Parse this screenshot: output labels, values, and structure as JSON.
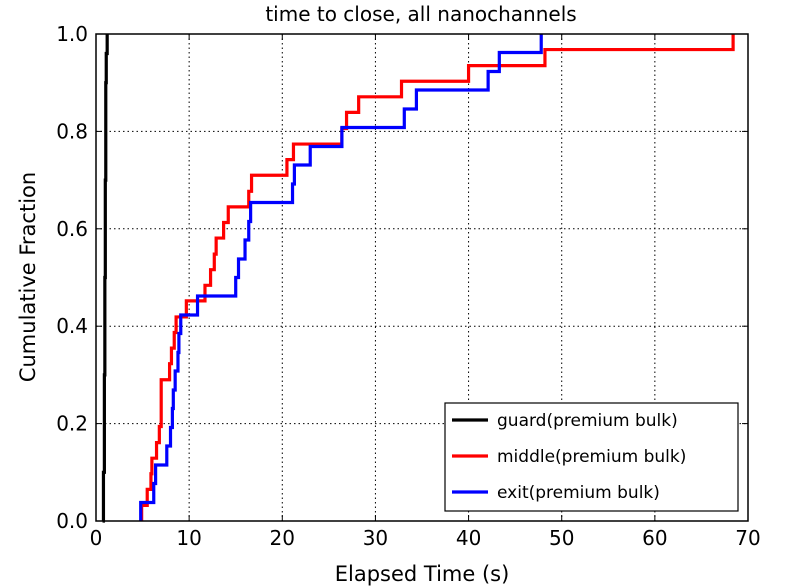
{
  "chart_data": {
    "type": "line",
    "step": true,
    "title": "time to close, all nanochannels",
    "xlabel": "Elapsed Time (s)",
    "ylabel": "Cumulative Fraction",
    "xlim": [
      0,
      70
    ],
    "ylim": [
      0,
      1.0
    ],
    "x_ticks": [
      0,
      10,
      20,
      30,
      40,
      50,
      60,
      70
    ],
    "x_tick_labels": [
      "0",
      "10",
      "20",
      "30",
      "40",
      "50",
      "60",
      "70"
    ],
    "y_ticks": [
      0.0,
      0.2,
      0.4,
      0.6,
      0.8,
      1.0
    ],
    "y_tick_labels": [
      "0.0",
      "0.2",
      "0.4",
      "0.6",
      "0.8",
      "1.0"
    ],
    "grid": true,
    "legend_position": "lower-right",
    "series": [
      {
        "name": "guard(premium bulk)",
        "color": "#000000",
        "points": [
          [
            0.7,
            0.0
          ],
          [
            0.8,
            0.1
          ],
          [
            0.9,
            0.3
          ],
          [
            0.95,
            0.5
          ],
          [
            1.0,
            0.7
          ],
          [
            1.05,
            0.9
          ],
          [
            1.1,
            0.96
          ],
          [
            1.2,
            1.0
          ]
        ]
      },
      {
        "name": "middle(premium bulk)",
        "color": "#ff0000",
        "points": [
          [
            4.9,
            0.0
          ],
          [
            4.9,
            0.032
          ],
          [
            5.5,
            0.065
          ],
          [
            5.9,
            0.097
          ],
          [
            6.0,
            0.129
          ],
          [
            6.5,
            0.161
          ],
          [
            6.8,
            0.194
          ],
          [
            7.0,
            0.29
          ],
          [
            7.9,
            0.323
          ],
          [
            8.1,
            0.355
          ],
          [
            8.4,
            0.387
          ],
          [
            8.6,
            0.419
          ],
          [
            9.7,
            0.452
          ],
          [
            11.7,
            0.484
          ],
          [
            12.3,
            0.516
          ],
          [
            12.7,
            0.548
          ],
          [
            12.9,
            0.581
          ],
          [
            13.7,
            0.613
          ],
          [
            14.2,
            0.645
          ],
          [
            16.4,
            0.677
          ],
          [
            16.7,
            0.71
          ],
          [
            20.5,
            0.742
          ],
          [
            21.2,
            0.774
          ],
          [
            26.4,
            0.806
          ],
          [
            26.9,
            0.839
          ],
          [
            28.2,
            0.871
          ],
          [
            32.8,
            0.903
          ],
          [
            40.0,
            0.935
          ],
          [
            48.2,
            0.968
          ],
          [
            68.4,
            1.0
          ]
        ]
      },
      {
        "name": "exit(premium bulk)",
        "color": "#0000ff",
        "points": [
          [
            4.8,
            0.0
          ],
          [
            4.8,
            0.038
          ],
          [
            6.2,
            0.077
          ],
          [
            6.4,
            0.115
          ],
          [
            7.6,
            0.154
          ],
          [
            8.0,
            0.192
          ],
          [
            8.2,
            0.231
          ],
          [
            8.3,
            0.269
          ],
          [
            8.5,
            0.308
          ],
          [
            8.8,
            0.346
          ],
          [
            8.9,
            0.385
          ],
          [
            9.1,
            0.423
          ],
          [
            10.9,
            0.462
          ],
          [
            15.0,
            0.5
          ],
          [
            15.3,
            0.538
          ],
          [
            16.0,
            0.577
          ],
          [
            16.4,
            0.615
          ],
          [
            16.6,
            0.654
          ],
          [
            21.1,
            0.692
          ],
          [
            21.3,
            0.731
          ],
          [
            23.0,
            0.769
          ],
          [
            26.4,
            0.808
          ],
          [
            33.1,
            0.846
          ],
          [
            34.4,
            0.885
          ],
          [
            42.1,
            0.923
          ],
          [
            43.3,
            0.962
          ],
          [
            47.8,
            1.0
          ]
        ]
      }
    ]
  }
}
